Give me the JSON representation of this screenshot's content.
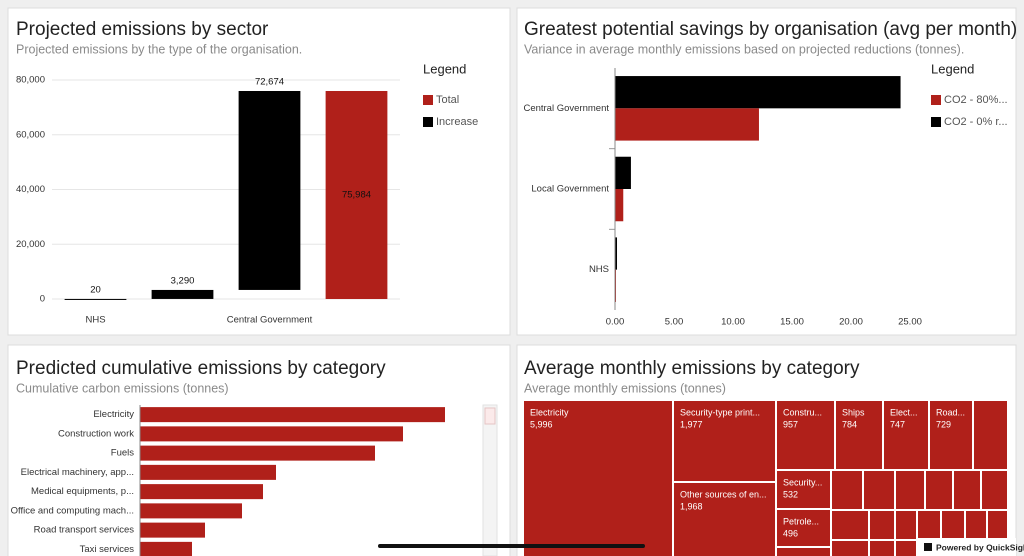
{
  "chart_data": [
    {
      "type": "waterfall",
      "title": "Projected emissions by sector",
      "subtitle": "Projected emissions by the type of the organisation.",
      "categories": [
        "NHS",
        null,
        "Central Government",
        null
      ],
      "series": [
        {
          "name": "Total",
          "color": "#b0201a",
          "values": [
            null,
            null,
            null,
            75984
          ],
          "value_labels": [
            null,
            null,
            null,
            "75,984"
          ]
        },
        {
          "name": "Increase",
          "color": "#000000",
          "values": [
            20,
            3290,
            72674,
            null
          ],
          "value_labels": [
            "20",
            "3,290",
            "72,674",
            null
          ]
        }
      ],
      "legend": {
        "title": "Legend",
        "position": "right"
      },
      "ylim": [
        0,
        80000
      ],
      "yticks": [
        0,
        {
          "value": 20000,
          "label": "20,000"
        },
        {
          "value": 40000,
          "label": "40,000"
        },
        {
          "value": 60000,
          "label": "60,000"
        },
        {
          "value": 80000,
          "label": "80,000"
        }
      ],
      "grid": true
    },
    {
      "type": "hbar",
      "title": "Greatest potential savings by organisation (avg per month)",
      "subtitle": "Variance in average monthly emissions based on projected reductions (tonnes).",
      "categories": [
        "Central Government",
        "Local Government",
        "NHS"
      ],
      "series": [
        {
          "name": "CO2 - 80%...",
          "color": "#b0201a",
          "values": [
            12.2,
            0.7,
            0.08
          ]
        },
        {
          "name": "CO2 - 0% r...",
          "color": "#000000",
          "values": [
            24.2,
            1.35,
            0.17
          ]
        }
      ],
      "legend": {
        "title": "Legend",
        "position": "right"
      },
      "xlim": [
        0,
        25
      ],
      "xticks": [
        {
          "value": 0,
          "label": "0.00"
        },
        {
          "value": 5,
          "label": "5.00"
        },
        {
          "value": 10,
          "label": "10.00"
        },
        {
          "value": 15,
          "label": "15.00"
        },
        {
          "value": 20,
          "label": "20.00"
        },
        {
          "value": 25,
          "label": "25.00"
        }
      ],
      "grid": false
    },
    {
      "type": "hbar",
      "title": "Predicted cumulative emissions by category",
      "subtitle": "Cumulative carbon emissions (tonnes)",
      "categories": [
        "Electricity",
        "Construction work",
        "Fuels",
        "Electrical machinery, app...",
        "Medical equipments, p...",
        "Office and computing mach...",
        "Road transport services",
        "Taxi services"
      ],
      "series": [
        {
          "color": "#b0201a",
          "values": [
            305,
            263,
            235,
            136,
            123,
            102,
            65,
            52
          ]
        }
      ],
      "xlim": [
        0,
        340
      ],
      "grid": false
    },
    {
      "type": "treemap",
      "title": "Average monthly emissions by category",
      "subtitle": "Average monthly emissions (tonnes)",
      "categories": [
        "Electricity",
        "Security-type print...",
        "Other sources of en...",
        "Constru...",
        "Ships",
        "Elect...",
        "Road...",
        "Security...",
        "Petrole..."
      ],
      "values": [
        5996,
        1977,
        1968,
        957,
        784,
        747,
        729,
        532,
        496
      ],
      "value_labels": [
        "5,996",
        "1,977",
        "1,968",
        "957",
        "784",
        "747",
        "729",
        "532",
        "496"
      ],
      "color": "#b0201a"
    }
  ],
  "branding": "Powered by QuickSight"
}
